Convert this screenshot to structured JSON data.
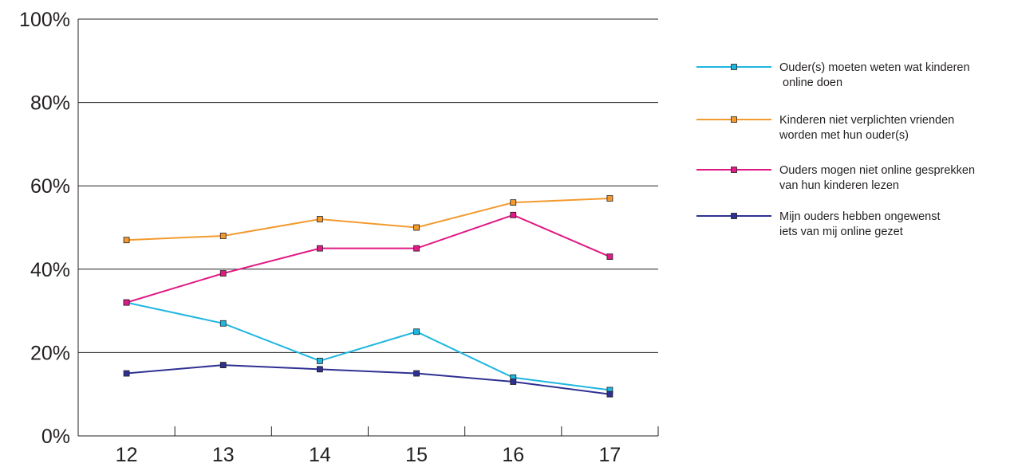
{
  "chart_data": {
    "type": "line",
    "title": "",
    "xlabel": "",
    "ylabel": "",
    "categories": [
      "12",
      "13",
      "14",
      "15",
      "16",
      "17"
    ],
    "ylim": [
      0,
      100
    ],
    "yticks": [
      "0%",
      "20%",
      "40%",
      "60%",
      "80%",
      "100%"
    ],
    "grid": true,
    "legend_position": "right",
    "series": [
      {
        "name": "Ouder(s) moeten weten wat kinderen online doen",
        "legend_lines": [
          "Ouder(s) moeten weten wat kinderen",
          " online doen"
        ],
        "color": "#1fb6e0",
        "values": [
          32,
          27,
          18,
          25,
          14,
          11
        ]
      },
      {
        "name": "Kinderen niet verplichten vrienden worden met hun ouder(s)",
        "legend_lines": [
          "Kinderen niet verplichten vrienden",
          "worden met hun ouder(s)"
        ],
        "color": "#f39a2f",
        "values": [
          47,
          48,
          52,
          50,
          56,
          57
        ]
      },
      {
        "name": "Ouders mogen niet online gesprekken van hun kinderen lezen",
        "legend_lines": [
          "Ouders mogen niet online gesprekken",
          "van hun kinderen lezen"
        ],
        "color": "#e01a84",
        "values": [
          32,
          39,
          45,
          45,
          53,
          43
        ]
      },
      {
        "name": "Mijn ouders hebben ongewenst iets van mij online gezet",
        "legend_lines": [
          "Mijn ouders hebben ongewenst",
          "iets van mij online gezet"
        ],
        "color": "#2e3192",
        "values": [
          15,
          17,
          16,
          15,
          13,
          10
        ]
      }
    ]
  }
}
